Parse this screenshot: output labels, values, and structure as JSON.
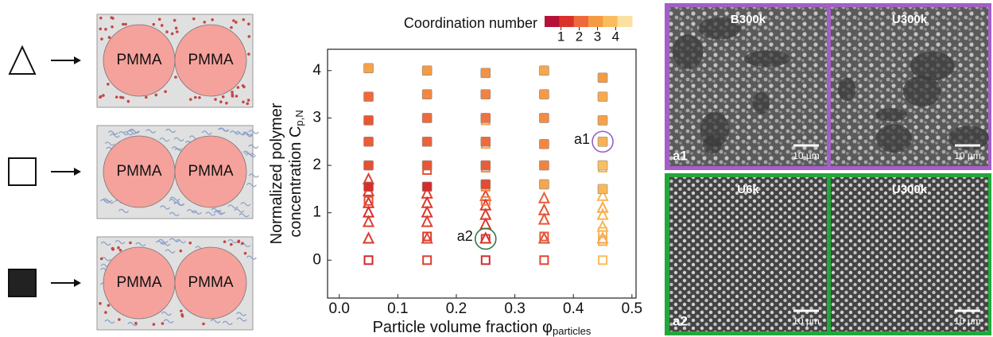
{
  "schematics": [
    {
      "labels": [
        "PMMA",
        "PMMA"
      ]
    },
    {
      "labels": [
        "PMMA",
        "PMMA"
      ]
    },
    {
      "labels": [
        "PMMA",
        "PMMA"
      ]
    }
  ],
  "chart_data": {
    "type": "scatter",
    "xlabel": "Particle volume fraction φ",
    "xlabel_sub": "particles",
    "ylabel": [
      "Normalized polymer",
      "concentration C"
    ],
    "ylabel_sub": "p,N",
    "xlim": [
      -0.02,
      0.507
    ],
    "ylim": [
      -0.8,
      4.45
    ],
    "xticks": [
      {
        "value": 0,
        "label": "0.0"
      },
      0.1,
      0.2,
      0.3,
      0.4,
      0.5
    ],
    "yticks": [
      0,
      1,
      2,
      3,
      4
    ],
    "colorbar": {
      "title": "Coordination number",
      "clim": [
        0.1,
        4.9
      ],
      "ticks": [
        1,
        2,
        3,
        4
      ],
      "colors": [
        "#b5123a",
        "#d8322a",
        "#ee6a3c",
        "#f59a44",
        "#f9bd5e",
        "#fbe1a0"
      ]
    },
    "series": [
      {
        "marker": "triangle",
        "x": [
          0.05,
          0.05,
          0.05,
          0.05,
          0.05,
          0.05,
          0.15,
          0.15,
          0.15,
          0.15,
          0.15,
          0.25,
          0.25,
          0.25,
          0.25,
          0.25,
          0.35,
          0.35,
          0.35,
          0.35,
          0.45,
          0.45,
          0.45,
          0.45,
          0.45
        ],
        "y": [
          1.7,
          1.45,
          1.2,
          1.0,
          0.8,
          0.45,
          1.4,
          1.2,
          1.0,
          0.8,
          0.45,
          1.35,
          1.15,
          0.95,
          0.75,
          0.45,
          1.3,
          1.05,
          0.85,
          0.45,
          1.35,
          1.1,
          0.95,
          0.7,
          0.45
        ],
        "c": [
          1.3,
          1.2,
          1.1,
          1.0,
          1.3,
          1.2,
          1.3,
          1.2,
          1.2,
          1.3,
          1.4,
          1.4,
          1.3,
          1.2,
          1.2,
          1.0,
          1.8,
          1.6,
          1.7,
          1.5,
          3.8,
          3.4,
          3.6,
          3.7,
          3.2
        ]
      },
      {
        "marker": "open-square",
        "x": [
          0.05,
          0.05,
          0.15,
          0.15,
          0.15,
          0.25,
          0.25,
          0.25,
          0.25,
          0.25,
          0.25,
          0.25,
          0.35,
          0.35,
          0.35,
          0.45,
          0.45,
          0.45,
          0.45,
          0.45,
          0.45
        ],
        "y": [
          1.25,
          0,
          1.9,
          0.5,
          0,
          2.95,
          2.45,
          1.95,
          1.55,
          1.25,
          0.45,
          0,
          1.6,
          0.5,
          0,
          2.5,
          1.95,
          1.5,
          0.6,
          0.4,
          0
        ],
        "c": [
          1.5,
          0.8,
          1.6,
          1.2,
          1.3,
          3.0,
          3.3,
          2.8,
          2.6,
          2.4,
          1.2,
          0.9,
          3.0,
          1.7,
          1.4,
          4.0,
          3.8,
          3.6,
          3.8,
          3.5,
          3.9
        ]
      },
      {
        "marker": "filled-square",
        "x": [
          0.05,
          0.05,
          0.05,
          0.05,
          0.05,
          0.05,
          0.15,
          0.15,
          0.15,
          0.15,
          0.15,
          0.15,
          0.25,
          0.25,
          0.25,
          0.25,
          0.25,
          0.25,
          0.35,
          0.35,
          0.35,
          0.35,
          0.35,
          0.35,
          0.45,
          0.45,
          0.45,
          0.45,
          0.45,
          0.45
        ],
        "y": [
          4.05,
          3.45,
          2.95,
          2.5,
          2.0,
          1.55,
          4.0,
          3.5,
          3.0,
          2.5,
          2.0,
          1.55,
          3.95,
          3.5,
          3.0,
          2.5,
          2.0,
          1.6,
          4.0,
          3.5,
          3.0,
          2.45,
          2.0,
          1.6,
          3.85,
          3.45,
          2.95,
          2.5,
          2.0,
          1.5
        ],
        "c": [
          3.2,
          2.0,
          1.7,
          1.8,
          1.6,
          1.0,
          3.0,
          2.6,
          2.0,
          1.9,
          1.7,
          0.9,
          2.8,
          2.5,
          2.2,
          2.0,
          1.8,
          1.5,
          3.3,
          3.0,
          2.7,
          2.6,
          2.5,
          3.3,
          3.0,
          3.4,
          3.2,
          3.6,
          4.0,
          3.8
        ]
      }
    ],
    "annotations": [
      {
        "label": "a1",
        "x": 0.45,
        "y": 2.5,
        "color": "#9b5fc0"
      },
      {
        "label": "a2",
        "x": 0.25,
        "y": 0.45,
        "color": "#2f7a4a"
      }
    ]
  },
  "micrographs": [
    {
      "tag": "a1",
      "border": "#a35fc7",
      "panels": [
        {
          "label": "B300k",
          "scale": "10 µm"
        },
        {
          "label": "U300k",
          "scale": "10 µm"
        }
      ]
    },
    {
      "tag": "a2",
      "border": "#22a83a",
      "panels": [
        {
          "label": "U6k",
          "scale": "10 µm"
        },
        {
          "label": "U300k",
          "scale": "10 µm"
        }
      ]
    }
  ]
}
